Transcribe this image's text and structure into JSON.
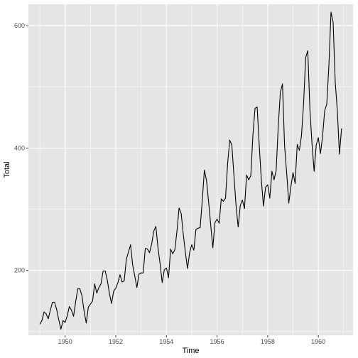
{
  "chart_data": {
    "type": "line",
    "title": "",
    "xlabel": "Time",
    "ylabel": "Total",
    "xlim": [
      1948.55,
      1961.37
    ],
    "ylim": [
      94,
      635
    ],
    "x_ticks": [
      1950,
      1952,
      1954,
      1956,
      1958,
      1960
    ],
    "y_ticks": [
      200,
      400,
      600
    ],
    "grid": true,
    "legend": "none",
    "colors": {
      "panel": "#e5e5e5",
      "grid": "#ffffff",
      "line": "#000000"
    },
    "series": [
      {
        "x_start": 1949.0,
        "x_step_months": 1,
        "values": [
          112,
          118,
          132,
          129,
          121,
          135,
          148,
          148,
          136,
          119,
          104,
          118,
          115,
          126,
          141,
          135,
          125,
          149,
          170,
          170,
          158,
          133,
          114,
          140,
          145,
          150,
          178,
          163,
          172,
          178,
          199,
          199,
          184,
          162,
          146,
          166,
          171,
          180,
          193,
          181,
          183,
          218,
          230,
          242,
          209,
          191,
          172,
          194,
          196,
          196,
          236,
          235,
          229,
          243,
          264,
          272,
          237,
          211,
          180,
          201,
          204,
          188,
          235,
          227,
          234,
          264,
          302,
          293,
          259,
          229,
          203,
          229,
          242,
          233,
          267,
          269,
          270,
          315,
          364,
          347,
          312,
          274,
          237,
          278,
          284,
          277,
          317,
          313,
          318,
          374,
          413,
          405,
          355,
          306,
          271,
          306,
          315,
          301,
          356,
          348,
          355,
          422,
          465,
          467,
          404,
          347,
          305,
          336,
          340,
          318,
          362,
          348,
          363,
          435,
          491,
          505,
          404,
          359,
          310,
          337,
          360,
          342,
          406,
          396,
          420,
          472,
          548,
          559,
          463,
          407,
          362,
          405,
          417,
          391,
          419,
          461,
          472,
          535,
          622,
          606,
          508,
          461,
          390,
          432
        ]
      }
    ]
  }
}
